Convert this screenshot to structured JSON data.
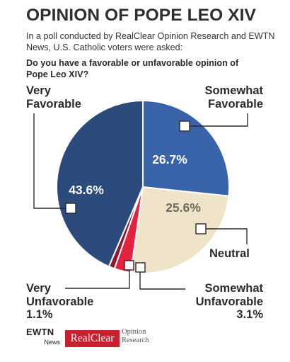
{
  "header": {
    "title": "OPINION OF POPE LEO XIV",
    "intro": "In a poll conducted by RealClear Opinion Research and EWTN News, U.S. Catholic voters were asked:",
    "question": "Do you have a favorable or unfavorable opinion of Pope Leo XIV?"
  },
  "chart_data": {
    "type": "pie",
    "title": "OPINION OF POPE LEO XIV",
    "slices": [
      {
        "label": "Somewhat Favorable",
        "value": 26.7,
        "value_label": "26.7%",
        "color": "#3a64aa"
      },
      {
        "label": "Neutral",
        "value": 25.6,
        "value_label": "25.6%",
        "color": "#efe3c9"
      },
      {
        "label": "Somewhat Unfavorable",
        "value": 3.1,
        "value_label": "3.1%",
        "color": "#e4213f"
      },
      {
        "label": "Very Unfavorable",
        "value": 1.1,
        "value_label": "1.1%",
        "color": "#93172d"
      },
      {
        "label": "Very Favorable",
        "value": 43.6,
        "value_label": "43.6%",
        "color": "#2a4b7c"
      }
    ]
  },
  "labels": {
    "very_favorable": "Very Favorable",
    "somewhat_favorable": "Somewhat Favorable",
    "neutral": "Neutral",
    "very_unfavorable_name": "Very Unfavorable",
    "very_unfavorable_pct": "1.1%",
    "somewhat_unfavorable_name": "Somewhat Unfavorable",
    "somewhat_unfavorable_pct": "3.1%"
  },
  "footer": {
    "ewtn": "EWTN",
    "ewtn_sub": "News",
    "realclear": "RealClear",
    "realclear_sub_1": "Opinion",
    "realclear_sub_2": "Research"
  }
}
